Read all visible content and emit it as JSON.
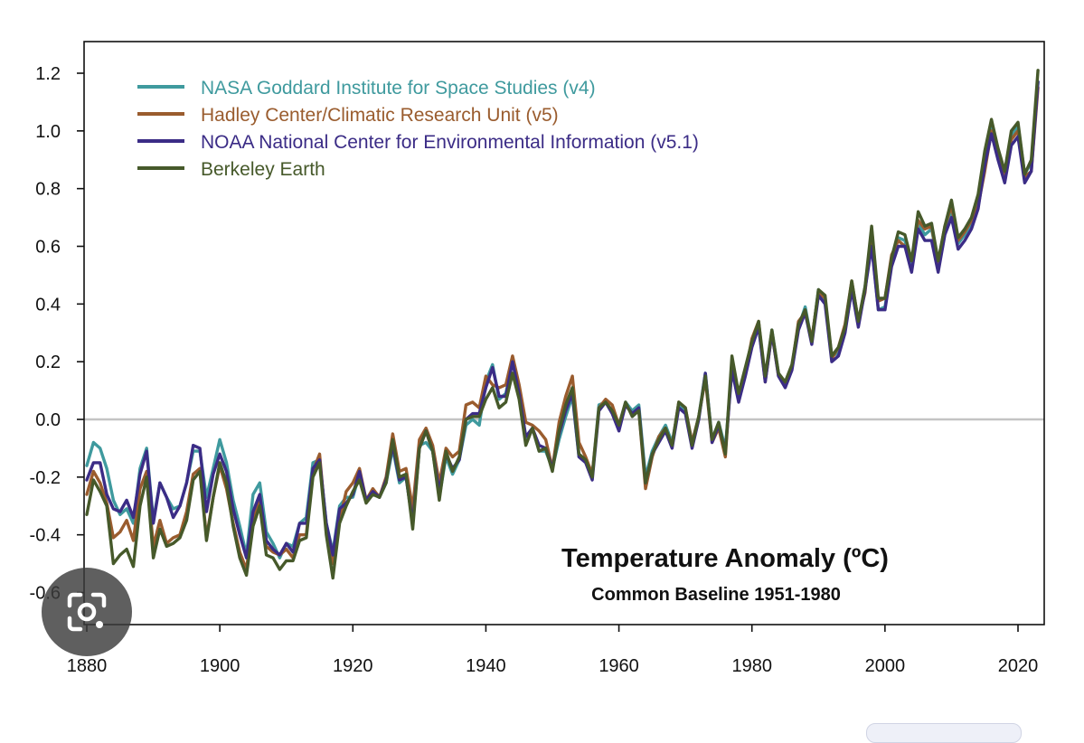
{
  "chart_data": {
    "type": "line",
    "title": "Temperature Anomaly (ºC)",
    "subtitle": "Common Baseline 1951-1980",
    "xlabel": "",
    "ylabel": "",
    "xlim": [
      1880,
      2023
    ],
    "ylim": [
      -0.75,
      1.3
    ],
    "x_ticks": [
      1880,
      1900,
      1920,
      1940,
      1960,
      1980,
      2000,
      2020
    ],
    "y_ticks": [
      "1.2",
      "1.0",
      "0.8",
      "0.6",
      "0.4",
      "0.2",
      "0.0",
      "-0.2",
      "-0.4",
      "-0.6"
    ],
    "y_tick_values": [
      1.2,
      1.0,
      0.8,
      0.6,
      0.4,
      0.2,
      0.0,
      -0.2,
      -0.4,
      -0.6
    ],
    "zero_line": 0.0,
    "legend_position": "top-left",
    "years": [
      1880,
      1881,
      1882,
      1883,
      1884,
      1885,
      1886,
      1887,
      1888,
      1889,
      1890,
      1891,
      1892,
      1893,
      1894,
      1895,
      1896,
      1897,
      1898,
      1899,
      1900,
      1901,
      1902,
      1903,
      1904,
      1905,
      1906,
      1907,
      1908,
      1909,
      1910,
      1911,
      1912,
      1913,
      1914,
      1915,
      1916,
      1917,
      1918,
      1919,
      1920,
      1921,
      1922,
      1923,
      1924,
      1925,
      1926,
      1927,
      1928,
      1929,
      1930,
      1931,
      1932,
      1933,
      1934,
      1935,
      1936,
      1937,
      1938,
      1939,
      1940,
      1941,
      1942,
      1943,
      1944,
      1945,
      1946,
      1947,
      1948,
      1949,
      1950,
      1951,
      1952,
      1953,
      1954,
      1955,
      1956,
      1957,
      1958,
      1959,
      1960,
      1961,
      1962,
      1963,
      1964,
      1965,
      1966,
      1967,
      1968,
      1969,
      1970,
      1971,
      1972,
      1973,
      1974,
      1975,
      1976,
      1977,
      1978,
      1979,
      1980,
      1981,
      1982,
      1983,
      1984,
      1985,
      1986,
      1987,
      1988,
      1989,
      1990,
      1991,
      1992,
      1993,
      1994,
      1995,
      1996,
      1997,
      1998,
      1999,
      2000,
      2001,
      2002,
      2003,
      2004,
      2005,
      2006,
      2007,
      2008,
      2009,
      2010,
      2011,
      2012,
      2013,
      2014,
      2015,
      2016,
      2017,
      2018,
      2019,
      2020,
      2021,
      2022,
      2023
    ],
    "series": [
      {
        "name": "NASA Goddard Institute for Space Studies (v4)",
        "color": "#3f9a9e",
        "values": [
          -0.16,
          -0.08,
          -0.1,
          -0.17,
          -0.28,
          -0.33,
          -0.31,
          -0.36,
          -0.17,
          -0.1,
          -0.35,
          -0.22,
          -0.27,
          -0.31,
          -0.3,
          -0.22,
          -0.11,
          -0.11,
          -0.27,
          -0.17,
          -0.07,
          -0.15,
          -0.28,
          -0.37,
          -0.47,
          -0.26,
          -0.22,
          -0.39,
          -0.43,
          -0.48,
          -0.43,
          -0.44,
          -0.36,
          -0.34,
          -0.15,
          -0.14,
          -0.36,
          -0.46,
          -0.3,
          -0.27,
          -0.27,
          -0.19,
          -0.28,
          -0.26,
          -0.27,
          -0.22,
          -0.1,
          -0.22,
          -0.2,
          -0.36,
          -0.09,
          -0.08,
          -0.11,
          -0.27,
          -0.13,
          -0.19,
          -0.14,
          -0.02,
          -0.0,
          -0.02,
          0.13,
          0.19,
          0.07,
          0.09,
          0.2,
          0.09,
          -0.07,
          -0.03,
          -0.11,
          -0.11,
          -0.17,
          -0.07,
          0.01,
          0.08,
          -0.13,
          -0.14,
          -0.19,
          0.05,
          0.06,
          0.03,
          -0.03,
          0.06,
          0.03,
          0.05,
          -0.2,
          -0.11,
          -0.06,
          -0.02,
          -0.08,
          0.05,
          0.03,
          -0.08,
          0.01,
          0.16,
          -0.07,
          -0.01,
          -0.1,
          0.18,
          0.07,
          0.16,
          0.26,
          0.32,
          0.14,
          0.31,
          0.16,
          0.12,
          0.18,
          0.32,
          0.39,
          0.27,
          0.45,
          0.41,
          0.22,
          0.23,
          0.31,
          0.45,
          0.33,
          0.46,
          0.61,
          0.38,
          0.39,
          0.54,
          0.63,
          0.62,
          0.53,
          0.68,
          0.64,
          0.66,
          0.54,
          0.65,
          0.72,
          0.61,
          0.64,
          0.68,
          0.75,
          0.9,
          1.01,
          0.92,
          0.85,
          0.98,
          1.02,
          0.85,
          0.89,
          1.17
        ]
      },
      {
        "name": "Hadley Center/Climatic Research Unit (v5)",
        "color": "#9a5c2e",
        "values": [
          -0.26,
          -0.18,
          -0.22,
          -0.29,
          -0.41,
          -0.39,
          -0.35,
          -0.42,
          -0.24,
          -0.18,
          -0.44,
          -0.35,
          -0.43,
          -0.41,
          -0.4,
          -0.32,
          -0.19,
          -0.17,
          -0.41,
          -0.27,
          -0.16,
          -0.24,
          -0.36,
          -0.46,
          -0.52,
          -0.34,
          -0.28,
          -0.44,
          -0.46,
          -0.47,
          -0.45,
          -0.48,
          -0.4,
          -0.4,
          -0.18,
          -0.12,
          -0.38,
          -0.5,
          -0.35,
          -0.25,
          -0.22,
          -0.17,
          -0.28,
          -0.24,
          -0.27,
          -0.2,
          -0.05,
          -0.18,
          -0.17,
          -0.31,
          -0.07,
          -0.03,
          -0.09,
          -0.22,
          -0.1,
          -0.13,
          -0.11,
          0.05,
          0.06,
          0.04,
          0.15,
          0.12,
          0.11,
          0.12,
          0.22,
          0.12,
          -0.01,
          -0.02,
          -0.04,
          -0.07,
          -0.17,
          -0.01,
          0.08,
          0.15,
          -0.08,
          -0.13,
          -0.19,
          0.04,
          0.07,
          0.05,
          -0.02,
          0.05,
          0.02,
          0.03,
          -0.24,
          -0.13,
          -0.06,
          -0.03,
          -0.09,
          0.06,
          0.04,
          -0.08,
          0.01,
          0.14,
          -0.08,
          -0.03,
          -0.13,
          0.2,
          0.08,
          0.16,
          0.28,
          0.34,
          0.13,
          0.3,
          0.15,
          0.12,
          0.18,
          0.34,
          0.37,
          0.28,
          0.44,
          0.42,
          0.21,
          0.25,
          0.33,
          0.48,
          0.34,
          0.44,
          0.66,
          0.41,
          0.42,
          0.57,
          0.62,
          0.6,
          0.55,
          0.69,
          0.66,
          0.67,
          0.54,
          0.67,
          0.74,
          0.62,
          0.65,
          0.69,
          0.74,
          0.86,
          1.0,
          0.91,
          0.85,
          0.97,
          1.0,
          0.84,
          0.86,
          1.15
        ]
      },
      {
        "name": "NOAA National Center for Environmental Information (v5.1)",
        "color": "#3b2c86",
        "values": [
          -0.21,
          -0.15,
          -0.15,
          -0.26,
          -0.31,
          -0.32,
          -0.28,
          -0.34,
          -0.19,
          -0.11,
          -0.36,
          -0.22,
          -0.27,
          -0.34,
          -0.3,
          -0.22,
          -0.09,
          -0.1,
          -0.32,
          -0.19,
          -0.12,
          -0.18,
          -0.31,
          -0.4,
          -0.48,
          -0.32,
          -0.26,
          -0.42,
          -0.45,
          -0.47,
          -0.43,
          -0.46,
          -0.36,
          -0.36,
          -0.17,
          -0.14,
          -0.36,
          -0.47,
          -0.31,
          -0.29,
          -0.26,
          -0.18,
          -0.28,
          -0.25,
          -0.27,
          -0.21,
          -0.09,
          -0.21,
          -0.2,
          -0.36,
          -0.1,
          -0.04,
          -0.11,
          -0.25,
          -0.12,
          -0.17,
          -0.14,
          0.0,
          0.02,
          0.02,
          0.11,
          0.18,
          0.08,
          0.08,
          0.2,
          0.09,
          -0.06,
          -0.03,
          -0.09,
          -0.1,
          -0.17,
          -0.05,
          0.03,
          0.09,
          -0.13,
          -0.15,
          -0.21,
          0.03,
          0.06,
          0.02,
          -0.04,
          0.05,
          0.02,
          0.04,
          -0.22,
          -0.12,
          -0.08,
          -0.04,
          -0.1,
          0.04,
          0.02,
          -0.1,
          0.0,
          0.16,
          -0.08,
          -0.02,
          -0.11,
          0.17,
          0.06,
          0.15,
          0.25,
          0.32,
          0.13,
          0.3,
          0.15,
          0.11,
          0.17,
          0.31,
          0.37,
          0.26,
          0.43,
          0.4,
          0.2,
          0.22,
          0.3,
          0.45,
          0.32,
          0.45,
          0.6,
          0.38,
          0.38,
          0.53,
          0.6,
          0.6,
          0.51,
          0.66,
          0.62,
          0.62,
          0.51,
          0.64,
          0.7,
          0.59,
          0.62,
          0.66,
          0.73,
          0.88,
          0.99,
          0.9,
          0.82,
          0.95,
          0.98,
          0.82,
          0.86,
          1.17
        ]
      },
      {
        "name": "Berkeley Earth",
        "color": "#46592a",
        "values": [
          -0.33,
          -0.21,
          -0.25,
          -0.3,
          -0.5,
          -0.47,
          -0.45,
          -0.51,
          -0.3,
          -0.2,
          -0.48,
          -0.38,
          -0.44,
          -0.43,
          -0.41,
          -0.35,
          -0.21,
          -0.18,
          -0.42,
          -0.27,
          -0.15,
          -0.22,
          -0.37,
          -0.48,
          -0.54,
          -0.37,
          -0.3,
          -0.47,
          -0.48,
          -0.52,
          -0.49,
          -0.49,
          -0.42,
          -0.41,
          -0.2,
          -0.15,
          -0.4,
          -0.55,
          -0.36,
          -0.3,
          -0.25,
          -0.21,
          -0.29,
          -0.26,
          -0.27,
          -0.22,
          -0.07,
          -0.2,
          -0.19,
          -0.38,
          -0.1,
          -0.04,
          -0.11,
          -0.28,
          -0.11,
          -0.18,
          -0.13,
          0.0,
          0.01,
          0.01,
          0.07,
          0.11,
          0.04,
          0.06,
          0.16,
          0.07,
          -0.09,
          -0.03,
          -0.11,
          -0.1,
          -0.18,
          -0.04,
          0.05,
          0.11,
          -0.12,
          -0.14,
          -0.2,
          0.04,
          0.06,
          0.03,
          -0.02,
          0.06,
          0.01,
          0.03,
          -0.22,
          -0.12,
          -0.07,
          -0.03,
          -0.09,
          0.06,
          0.04,
          -0.09,
          0.01,
          0.15,
          -0.07,
          -0.01,
          -0.12,
          0.22,
          0.09,
          0.18,
          0.27,
          0.34,
          0.15,
          0.31,
          0.16,
          0.13,
          0.19,
          0.33,
          0.38,
          0.27,
          0.45,
          0.43,
          0.22,
          0.25,
          0.32,
          0.48,
          0.34,
          0.46,
          0.67,
          0.42,
          0.42,
          0.56,
          0.65,
          0.64,
          0.55,
          0.72,
          0.67,
          0.68,
          0.55,
          0.67,
          0.76,
          0.63,
          0.66,
          0.7,
          0.78,
          0.93,
          1.04,
          0.94,
          0.86,
          1.0,
          1.03,
          0.85,
          0.9,
          1.21
        ]
      }
    ]
  },
  "overlay": {
    "lens_icon": "google-lens-icon"
  }
}
